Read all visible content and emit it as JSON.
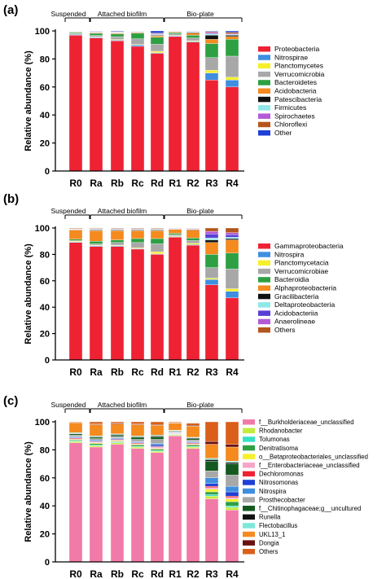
{
  "chart_data": [
    {
      "type": "bar",
      "panel_label": "(a)",
      "ylabel": "Relative abundance (%)",
      "ylim": [
        0,
        100
      ],
      "yticks": [
        0,
        20,
        40,
        60,
        80,
        100
      ],
      "categories": [
        "R0",
        "Ra",
        "Rb",
        "Rc",
        "Rd",
        "R1",
        "R2",
        "R3",
        "R4"
      ],
      "groups": [
        {
          "label": "Suspended",
          "categories": [
            "R0"
          ]
        },
        {
          "label": "Attached biofilm",
          "categories": [
            "Ra",
            "Rb",
            "Rc",
            "Rd"
          ]
        },
        {
          "label": "Bio-plate",
          "categories": [
            "R1",
            "R2",
            "R3",
            "R4"
          ]
        }
      ],
      "legend_position": "right",
      "series": [
        {
          "name": "Proteobacteria",
          "color": "#ee2233",
          "values": [
            97,
            95,
            93,
            89,
            84,
            96,
            92,
            65,
            60
          ]
        },
        {
          "name": "Nitrospirae",
          "color": "#3f8ee0",
          "values": [
            0.5,
            0.5,
            0.5,
            1,
            0.5,
            0.5,
            0.5,
            5,
            5
          ]
        },
        {
          "name": "Planctomycetes",
          "color": "#f5f02a",
          "values": [
            0.3,
            0.3,
            0.4,
            0.4,
            1,
            0.3,
            0.5,
            2,
            2
          ]
        },
        {
          "name": "Verrucomicrobia",
          "color": "#a8a8a8",
          "values": [
            0.5,
            1,
            2,
            4,
            5,
            1,
            2,
            9,
            15
          ]
        },
        {
          "name": "Bacteroidetes",
          "color": "#2ea043",
          "values": [
            0.7,
            1.5,
            2,
            4,
            5,
            1,
            2,
            10,
            12
          ]
        },
        {
          "name": "Acidobacteria",
          "color": "#f58a1f",
          "values": [
            0.3,
            0.5,
            0.5,
            0.5,
            1,
            0.5,
            1.5,
            3,
            2
          ]
        },
        {
          "name": "Patescibacteria",
          "color": "#111111",
          "values": [
            0.2,
            0.3,
            0.3,
            0.3,
            0.5,
            0.2,
            0.5,
            3,
            1
          ]
        },
        {
          "name": "Firmicutes",
          "color": "#8fe8e8",
          "values": [
            0.2,
            0.2,
            0.3,
            0.3,
            0.5,
            0.2,
            0.3,
            1,
            0.5
          ]
        },
        {
          "name": "Spirochaetes",
          "color": "#b45ad6",
          "values": [
            0.1,
            0.2,
            0.3,
            0.2,
            0.5,
            0.1,
            0.2,
            1,
            0.5
          ]
        },
        {
          "name": "Chloroflexi",
          "color": "#b5561c",
          "values": [
            0.1,
            0.2,
            0.2,
            0.2,
            0.5,
            0.1,
            0.2,
            0.5,
            1
          ]
        },
        {
          "name": "Other",
          "color": "#1f3fd6",
          "values": [
            0.1,
            0.3,
            0.5,
            0.1,
            1.5,
            0.1,
            0.3,
            0.5,
            1
          ]
        }
      ]
    },
    {
      "type": "bar",
      "panel_label": "(b)",
      "ylabel": "Relative abundance (%)",
      "ylim": [
        0,
        100
      ],
      "yticks": [
        0,
        20,
        40,
        60,
        80,
        100
      ],
      "categories": [
        "R0",
        "Ra",
        "Rb",
        "Rc",
        "Rd",
        "R1",
        "R2",
        "R3",
        "R4"
      ],
      "groups": [
        {
          "label": "Suspended",
          "categories": [
            "R0"
          ]
        },
        {
          "label": "Attached biofilm",
          "categories": [
            "Ra",
            "Rb",
            "Rc",
            "Rd"
          ]
        },
        {
          "label": "Bio-plate",
          "categories": [
            "R1",
            "R2",
            "R3",
            "R4"
          ]
        }
      ],
      "legend_position": "right",
      "series": [
        {
          "name": "Gammaproteobacteria",
          "color": "#ee2233",
          "values": [
            89,
            86,
            86,
            84,
            80,
            93,
            87,
            57,
            47
          ]
        },
        {
          "name": "Nitrospira",
          "color": "#3f8ee0",
          "values": [
            0.5,
            0.5,
            0.5,
            0.5,
            0.5,
            0.5,
            0.5,
            4,
            5
          ]
        },
        {
          "name": "Planctomycetacia",
          "color": "#f5f02a",
          "values": [
            0.5,
            0.5,
            0.5,
            0.5,
            1.5,
            0.5,
            1,
            1,
            2
          ]
        },
        {
          "name": "Verrucomicrobiae",
          "color": "#a8a8a8",
          "values": [
            0.5,
            1,
            2,
            4,
            6,
            1,
            2,
            8,
            15
          ]
        },
        {
          "name": "Bacteroidia",
          "color": "#2ea043",
          "values": [
            1,
            2,
            2,
            3,
            4,
            1,
            2,
            10,
            12
          ]
        },
        {
          "name": "Alphaproteobacteria",
          "color": "#f58a1f",
          "values": [
            7,
            8,
            7,
            6,
            6,
            3,
            6,
            9,
            10
          ]
        },
        {
          "name": "Gracilibacteria",
          "color": "#111111",
          "values": [
            0.3,
            0.5,
            0.5,
            0.5,
            0.5,
            0.3,
            0.5,
            2,
            1
          ]
        },
        {
          "name": "Deltaproteobacteria",
          "color": "#8fe8e8",
          "values": [
            0.3,
            0.5,
            0.5,
            0.5,
            0.5,
            0.2,
            0.3,
            1.5,
            1
          ]
        },
        {
          "name": "Acidobacteriia",
          "color": "#5a3fd6",
          "values": [
            0.2,
            0.3,
            0.3,
            0.2,
            0.3,
            0.2,
            0.2,
            3,
            2
          ]
        },
        {
          "name": "Anaerolineae",
          "color": "#b45ad6",
          "values": [
            0.2,
            0.3,
            0.2,
            0.3,
            0.2,
            0.1,
            0.2,
            2,
            1.5
          ]
        },
        {
          "name": "Others",
          "color": "#b5561c",
          "values": [
            0.5,
            0.4,
            0.5,
            0.5,
            0.5,
            0.2,
            0.3,
            2.5,
            3.5
          ]
        }
      ]
    },
    {
      "type": "bar",
      "panel_label": "(c)",
      "ylabel": "Relative abundance (%)",
      "ylim": [
        0,
        100
      ],
      "yticks": [
        0,
        20,
        40,
        60,
        80,
        100
      ],
      "categories": [
        "R0",
        "Ra",
        "Rb",
        "Rc",
        "Rd",
        "R1",
        "R2",
        "R3",
        "R4"
      ],
      "groups": [
        {
          "label": "Suspended",
          "categories": [
            "R0"
          ]
        },
        {
          "label": "Attached biofilm",
          "categories": [
            "Ra",
            "Rb",
            "Rc",
            "Rd"
          ]
        },
        {
          "label": "Bio-plate",
          "categories": [
            "R1",
            "R2",
            "R3",
            "R4"
          ]
        }
      ],
      "legend_position": "right",
      "series": [
        {
          "name": "f__Burkholderiaceae_unclassified",
          "color": "#f27aa8",
          "values": [
            85,
            82,
            84,
            81,
            78,
            90,
            81,
            45,
            37
          ]
        },
        {
          "name": "Rhodanobacter",
          "color": "#c4ec3c",
          "values": [
            1,
            1,
            1,
            1,
            1,
            0.5,
            1,
            2,
            2
          ]
        },
        {
          "name": "Tolumonas",
          "color": "#38e0c8",
          "values": [
            0.5,
            0.5,
            0.5,
            0.5,
            0.5,
            0.3,
            0.5,
            1,
            1
          ]
        },
        {
          "name": "Denitratisoma",
          "color": "#2ea043",
          "values": [
            0.5,
            1,
            0.5,
            1,
            1,
            0.3,
            1,
            2,
            3
          ]
        },
        {
          "name": "o__Betaproteobacteriales_unclassified",
          "color": "#f5f02a",
          "values": [
            0.5,
            0.5,
            0.5,
            0.5,
            0.5,
            0.3,
            0.5,
            2,
            2
          ]
        },
        {
          "name": "f__Enterobacteriaceae_unclassified",
          "color": "#f7a6c8",
          "values": [
            0.5,
            0.5,
            0.5,
            0.5,
            1,
            0.3,
            0.5,
            1,
            1
          ]
        },
        {
          "name": "Dechloromonas",
          "color": "#ee2233",
          "values": [
            0.5,
            0.5,
            0.5,
            0.5,
            0.5,
            0.3,
            0.5,
            1,
            1
          ]
        },
        {
          "name": "Nitrosomonas",
          "color": "#1f3fd6",
          "values": [
            0.5,
            0.5,
            0.5,
            0.5,
            1,
            0.3,
            0.5,
            2,
            3
          ]
        },
        {
          "name": "Nitrospira",
          "color": "#3f8ee0",
          "values": [
            0.5,
            0.5,
            0.5,
            0.5,
            1,
            0.3,
            0.5,
            4,
            4
          ]
        },
        {
          "name": "Prosthecobacter",
          "color": "#a8a8a8",
          "values": [
            1,
            1,
            1,
            1.5,
            3,
            0.5,
            1,
            5,
            8
          ]
        },
        {
          "name": "f__Chitinophagaceae;g__uncultured",
          "color": "#145a20",
          "values": [
            1,
            1,
            1,
            1.5,
            2,
            0.5,
            1,
            7,
            8
          ]
        },
        {
          "name": "Runella",
          "color": "#111111",
          "values": [
            0.3,
            0.5,
            0.5,
            0.5,
            0.5,
            0.2,
            0.5,
            1,
            1
          ]
        },
        {
          "name": "Flectobacillus",
          "color": "#7ee8d8",
          "values": [
            0.5,
            0.5,
            0.5,
            0.5,
            0.5,
            0.2,
            0.5,
            1,
            1
          ]
        },
        {
          "name": "UKL13_1",
          "color": "#f58a1f",
          "values": [
            7,
            8,
            7,
            8,
            7,
            5,
            8,
            10,
            10
          ]
        },
        {
          "name": "Dongia",
          "color": "#6b1010",
          "values": [
            0.3,
            0.5,
            0.5,
            0.5,
            0.5,
            0.3,
            0.5,
            2,
            2
          ]
        },
        {
          "name": "Others",
          "color": "#d95f1a",
          "values": [
            0.4,
            1.5,
            1.5,
            2,
            2.5,
            0.5,
            1.5,
            14,
            17
          ]
        }
      ]
    }
  ]
}
